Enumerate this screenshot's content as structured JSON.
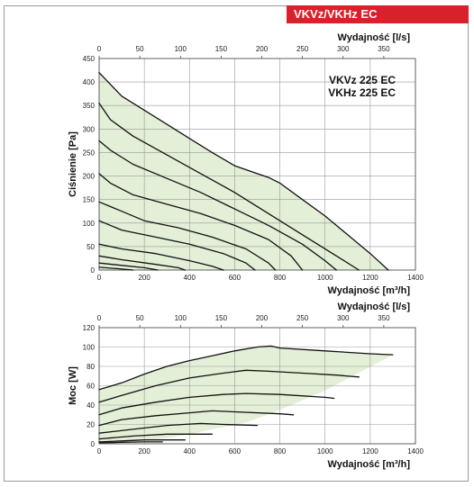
{
  "header": {
    "badge": "VKVz/VKHz EC"
  },
  "colors": {
    "badge": "#d8212b",
    "area": "#e3efd6",
    "curve": "#111111",
    "grid": "#9a9a9a"
  },
  "chart_data": [
    {
      "type": "line",
      "title": "",
      "models": [
        "VKVz 225 EC",
        "VKHz 225 EC"
      ],
      "xlabel": "Wydajność [m³/h]",
      "x2label": "Wydajność [l/s]",
      "ylabel": "Ciśnienie [Pa]",
      "xlim": [
        0,
        1400
      ],
      "x2lim": [
        0,
        388.9
      ],
      "ylim": [
        0,
        450
      ],
      "xticks": [
        "0",
        "200",
        "400",
        "600",
        "800",
        "1000",
        "1200",
        "1400"
      ],
      "x2ticks": [
        "0",
        "50",
        "100",
        "150",
        "200",
        "250",
        "300",
        "350"
      ],
      "yticks": [
        "0",
        "50",
        "100",
        "150",
        "200",
        "250",
        "300",
        "350",
        "400",
        "450"
      ],
      "grid": true,
      "area": [
        [
          0,
          420
        ],
        [
          100,
          370
        ],
        [
          200,
          340
        ],
        [
          300,
          310
        ],
        [
          400,
          280
        ],
        [
          500,
          250
        ],
        [
          600,
          222
        ],
        [
          700,
          205
        ],
        [
          750,
          197
        ],
        [
          800,
          185
        ],
        [
          900,
          150
        ],
        [
          1000,
          115
        ],
        [
          1100,
          75
        ],
        [
          1200,
          35
        ],
        [
          1280,
          0
        ],
        [
          0,
          0
        ]
      ],
      "series": [
        {
          "points": [
            [
              0,
              420
            ],
            [
              100,
              370
            ],
            [
              200,
              340
            ],
            [
              300,
              310
            ],
            [
              400,
              280
            ],
            [
              500,
              250
            ],
            [
              600,
              222
            ],
            [
              700,
              205
            ],
            [
              750,
              197
            ],
            [
              800,
              185
            ],
            [
              900,
              150
            ],
            [
              1000,
              115
            ],
            [
              1100,
              75
            ],
            [
              1200,
              35
            ],
            [
              1280,
              0
            ]
          ]
        },
        {
          "points": [
            [
              0,
              355
            ],
            [
              50,
              320
            ],
            [
              150,
              285
            ],
            [
              300,
              245
            ],
            [
              450,
              205
            ],
            [
              600,
              165
            ],
            [
              750,
              120
            ],
            [
              900,
              75
            ],
            [
              1050,
              30
            ],
            [
              1150,
              0
            ]
          ]
        },
        {
          "points": [
            [
              0,
              275
            ],
            [
              50,
              255
            ],
            [
              150,
              225
            ],
            [
              300,
              195
            ],
            [
              450,
              165
            ],
            [
              600,
              130
            ],
            [
              750,
              95
            ],
            [
              900,
              55
            ],
            [
              1000,
              20
            ],
            [
              1050,
              0
            ]
          ]
        },
        {
          "points": [
            [
              0,
              205
            ],
            [
              50,
              185
            ],
            [
              150,
              160
            ],
            [
              300,
              140
            ],
            [
              450,
              120
            ],
            [
              600,
              95
            ],
            [
              750,
              65
            ],
            [
              850,
              30
            ],
            [
              900,
              0
            ]
          ]
        },
        {
          "points": [
            [
              0,
              145
            ],
            [
              100,
              125
            ],
            [
              200,
              105
            ],
            [
              350,
              90
            ],
            [
              500,
              70
            ],
            [
              650,
              45
            ],
            [
              750,
              15
            ],
            [
              780,
              0
            ]
          ]
        },
        {
          "points": [
            [
              0,
              105
            ],
            [
              100,
              85
            ],
            [
              250,
              70
            ],
            [
              400,
              55
            ],
            [
              550,
              35
            ],
            [
              650,
              15
            ],
            [
              690,
              0
            ]
          ]
        },
        {
          "points": [
            [
              0,
              55
            ],
            [
              100,
              45
            ],
            [
              250,
              35
            ],
            [
              400,
              20
            ],
            [
              500,
              8
            ],
            [
              550,
              0
            ]
          ]
        },
        {
          "points": [
            [
              0,
              30
            ],
            [
              100,
              22
            ],
            [
              250,
              12
            ],
            [
              350,
              5
            ],
            [
              380,
              0
            ]
          ]
        },
        {
          "points": [
            [
              0,
              15
            ],
            [
              100,
              10
            ],
            [
              200,
              5
            ],
            [
              260,
              0
            ]
          ]
        },
        {
          "points": [
            [
              0,
              6
            ],
            [
              80,
              3
            ],
            [
              150,
              0
            ]
          ]
        }
      ]
    },
    {
      "type": "line",
      "title": "",
      "xlabel": "Wydajność [m³/h]",
      "x2label": "Wydajność [l/s]",
      "ylabel": "Moc [W]",
      "xlim": [
        0,
        1400
      ],
      "x2lim": [
        0,
        388.9
      ],
      "ylim": [
        0,
        120
      ],
      "xticks": [
        "0",
        "200",
        "400",
        "600",
        "800",
        "1000",
        "1200",
        "1400"
      ],
      "x2ticks": [
        "0",
        "50",
        "100",
        "150",
        "200",
        "250",
        "300",
        "350"
      ],
      "yticks": [
        "0",
        "20",
        "40",
        "60",
        "80",
        "100",
        "120"
      ],
      "grid": true,
      "area": [
        [
          0,
          56
        ],
        [
          100,
          63
        ],
        [
          200,
          72
        ],
        [
          300,
          80
        ],
        [
          400,
          86
        ],
        [
          500,
          91
        ],
        [
          600,
          96
        ],
        [
          700,
          100
        ],
        [
          760,
          101
        ],
        [
          800,
          99
        ],
        [
          1000,
          96
        ],
        [
          1200,
          93
        ],
        [
          1300,
          92
        ],
        [
          1000,
          55
        ],
        [
          800,
          35
        ],
        [
          650,
          22
        ],
        [
          500,
          15
        ],
        [
          400,
          10
        ],
        [
          300,
          6
        ],
        [
          150,
          2
        ],
        [
          0,
          0
        ]
      ],
      "series": [
        {
          "points": [
            [
              0,
              56
            ],
            [
              100,
              63
            ],
            [
              200,
              72
            ],
            [
              300,
              80
            ],
            [
              400,
              86
            ],
            [
              500,
              91
            ],
            [
              600,
              96
            ],
            [
              700,
              100
            ],
            [
              760,
              101
            ],
            [
              800,
              99
            ],
            [
              1000,
              96
            ],
            [
              1200,
              93
            ],
            [
              1300,
              92
            ]
          ]
        },
        {
          "points": [
            [
              0,
              43
            ],
            [
              100,
              50
            ],
            [
              250,
              60
            ],
            [
              400,
              68
            ],
            [
              550,
              73
            ],
            [
              650,
              76
            ],
            [
              750,
              75
            ],
            [
              900,
              73
            ],
            [
              1050,
              71
            ],
            [
              1150,
              69
            ]
          ]
        },
        {
          "points": [
            [
              0,
              30
            ],
            [
              100,
              37
            ],
            [
              250,
              43
            ],
            [
              400,
              48
            ],
            [
              550,
              51
            ],
            [
              650,
              52
            ],
            [
              800,
              51
            ],
            [
              1000,
              48
            ],
            [
              1040,
              47
            ]
          ]
        },
        {
          "points": [
            [
              0,
              19
            ],
            [
              100,
              25
            ],
            [
              250,
              29
            ],
            [
              400,
              32
            ],
            [
              500,
              34
            ],
            [
              600,
              33
            ],
            [
              800,
              31
            ],
            [
              860,
              30
            ]
          ]
        },
        {
          "points": [
            [
              0,
              11
            ],
            [
              150,
              15
            ],
            [
              300,
              19
            ],
            [
              450,
              21
            ],
            [
              550,
              20
            ],
            [
              700,
              19
            ]
          ]
        },
        {
          "points": [
            [
              0,
              5
            ],
            [
              150,
              8
            ],
            [
              300,
              10
            ],
            [
              400,
              10
            ],
            [
              500,
              10
            ]
          ]
        },
        {
          "points": [
            [
              0,
              2
            ],
            [
              100,
              3
            ],
            [
              200,
              4
            ],
            [
              300,
              4
            ],
            [
              380,
              4
            ]
          ]
        },
        {
          "points": [
            [
              0,
              1
            ],
            [
              100,
              1.5
            ],
            [
              200,
              2
            ],
            [
              280,
              2
            ]
          ]
        }
      ]
    }
  ]
}
